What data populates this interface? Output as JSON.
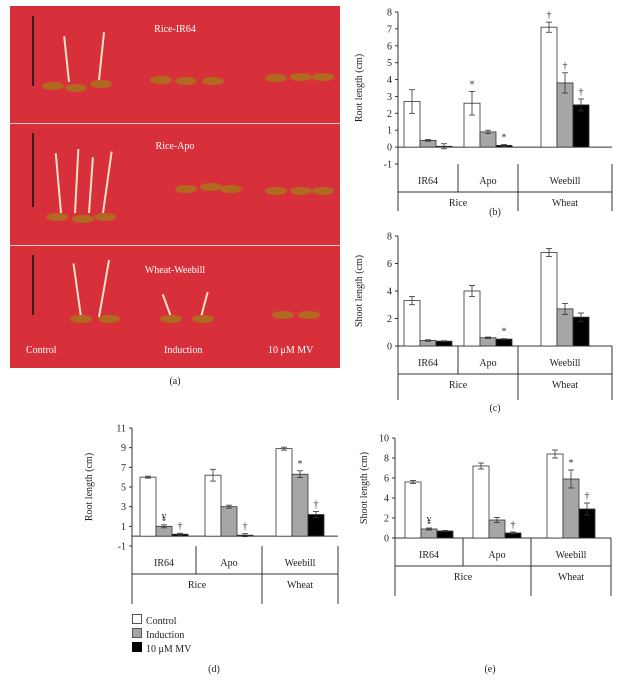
{
  "photo": {
    "titles": [
      "Rice-IR64",
      "Rice-Apo",
      "Wheat-Weebill"
    ],
    "treatments": [
      "Control",
      "Induction",
      "10 μM MV"
    ]
  },
  "captions": {
    "a": "(a)",
    "b": "(b)",
    "c": "(c)",
    "d": "(d)",
    "e": "(e)"
  },
  "legend": {
    "items": [
      {
        "label": "Control",
        "color": "#ffffff"
      },
      {
        "label": "Induction",
        "color": "#a6a6a6"
      },
      {
        "label": "10 μM MV",
        "color": "#000000"
      }
    ]
  },
  "chart_data": [
    {
      "id": "b",
      "type": "bar",
      "ylabel": "Root length (cm)",
      "ylim": [
        -1,
        8
      ],
      "yticks": [
        -1,
        0,
        1,
        2,
        3,
        4,
        5,
        6,
        7,
        8
      ],
      "categories": [
        "IR64",
        "Apo",
        "Weebill"
      ],
      "groups": [
        {
          "label": "Rice",
          "span": [
            0,
            1
          ]
        },
        {
          "label": "Wheat",
          "span": [
            2,
            2
          ]
        }
      ],
      "series": [
        {
          "values": [
            2.7,
            2.6,
            7.1
          ],
          "errors": [
            0.7,
            0.7,
            0.3
          ]
        },
        {
          "values": [
            0.4,
            0.9,
            3.8
          ],
          "errors": [
            0.05,
            0.1,
            0.6
          ]
        },
        {
          "values": [
            0.05,
            0.1,
            2.5
          ],
          "errors": [
            0.15,
            0.05,
            0.35
          ]
        }
      ],
      "marks": [
        [
          null,
          "*",
          "†"
        ],
        [
          null,
          null,
          "†"
        ],
        [
          null,
          "*",
          "†"
        ]
      ]
    },
    {
      "id": "c",
      "type": "bar",
      "ylabel": "Shoot length (cm)",
      "ylim": [
        0,
        8
      ],
      "yticks": [
        0,
        2,
        4,
        6,
        8
      ],
      "categories": [
        "IR64",
        "Apo",
        "Weebill"
      ],
      "groups": [
        {
          "label": "Rice",
          "span": [
            0,
            1
          ]
        },
        {
          "label": "Wheat",
          "span": [
            2,
            2
          ]
        }
      ],
      "series": [
        {
          "values": [
            3.3,
            4.0,
            6.8
          ],
          "errors": [
            0.3,
            0.4,
            0.3
          ]
        },
        {
          "values": [
            0.4,
            0.6,
            2.7
          ],
          "errors": [
            0.05,
            0.05,
            0.4
          ]
        },
        {
          "values": [
            0.35,
            0.5,
            2.1
          ],
          "errors": [
            0.03,
            0.03,
            0.3
          ]
        }
      ],
      "marks": [
        [
          null,
          null,
          null
        ],
        [
          null,
          null,
          null
        ],
        [
          null,
          "*",
          null
        ]
      ]
    },
    {
      "id": "d",
      "type": "bar",
      "ylabel": "Root length (cm)",
      "ylim": [
        -1,
        11
      ],
      "yticks": [
        -1,
        1,
        3,
        5,
        7,
        9,
        11
      ],
      "categories": [
        "IR64",
        "Apo",
        "Weebill"
      ],
      "groups": [
        {
          "label": "Rice",
          "span": [
            0,
            1
          ]
        },
        {
          "label": "Wheat",
          "span": [
            2,
            2
          ]
        }
      ],
      "series": [
        {
          "values": [
            6.0,
            6.2,
            8.9
          ],
          "errors": [
            0.1,
            0.6,
            0.15
          ]
        },
        {
          "values": [
            1.0,
            3.0,
            6.3
          ],
          "errors": [
            0.15,
            0.15,
            0.35
          ]
        },
        {
          "values": [
            0.2,
            0.1,
            2.2
          ],
          "errors": [
            0.1,
            0.15,
            0.3
          ]
        }
      ],
      "marks": [
        [
          null,
          null,
          null
        ],
        [
          null,
          null,
          null
        ],
        [
          null,
          null,
          null
        ]
      ],
      "marks_by_cat": [
        [
          "¥",
          "†"
        ],
        [
          null,
          "†"
        ],
        [
          "*",
          "†"
        ]
      ]
    },
    {
      "id": "e",
      "type": "bar",
      "ylabel": "Shoot length (cm)",
      "ylim": [
        0,
        10
      ],
      "yticks": [
        0,
        2,
        4,
        6,
        8,
        10
      ],
      "categories": [
        "IR64",
        "Apo",
        "Weebill"
      ],
      "groups": [
        {
          "label": "Rice",
          "span": [
            0,
            1
          ]
        },
        {
          "label": "Wheat",
          "span": [
            2,
            2
          ]
        }
      ],
      "series": [
        {
          "values": [
            5.6,
            7.2,
            8.4
          ],
          "errors": [
            0.15,
            0.3,
            0.4
          ]
        },
        {
          "values": [
            0.9,
            1.8,
            5.9
          ],
          "errors": [
            0.1,
            0.25,
            0.9
          ]
        },
        {
          "values": [
            0.7,
            0.5,
            2.9
          ],
          "errors": [
            0.05,
            0.1,
            0.6
          ]
        }
      ],
      "marks_by_cat": [
        [
          "¥",
          null
        ],
        [
          null,
          "†"
        ],
        [
          "*",
          "†"
        ]
      ]
    }
  ]
}
